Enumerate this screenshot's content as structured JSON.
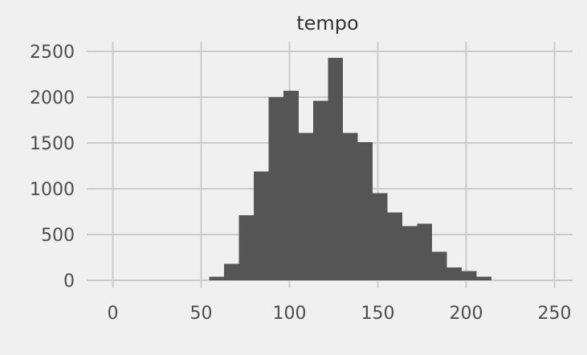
{
  "chart_data": {
    "type": "bar",
    "title": "tempo",
    "xlabel": "",
    "ylabel": "",
    "xlim": [
      -10,
      255
    ],
    "ylim": [
      0,
      2560
    ],
    "x_ticks": [
      0,
      50,
      100,
      150,
      200,
      250
    ],
    "y_ticks": [
      0,
      500,
      1000,
      1500,
      2000,
      2500
    ],
    "grid": true,
    "bin_width": 8.4,
    "bins": [
      {
        "x0": 54.6,
        "count": 40
      },
      {
        "x0": 63.0,
        "count": 180
      },
      {
        "x0": 71.4,
        "count": 710
      },
      {
        "x0": 79.8,
        "count": 1190
      },
      {
        "x0": 88.2,
        "count": 2000
      },
      {
        "x0": 96.6,
        "count": 2070
      },
      {
        "x0": 105.0,
        "count": 1610
      },
      {
        "x0": 113.4,
        "count": 1960
      },
      {
        "x0": 121.8,
        "count": 2430
      },
      {
        "x0": 130.2,
        "count": 1610
      },
      {
        "x0": 138.6,
        "count": 1510
      },
      {
        "x0": 147.0,
        "count": 950
      },
      {
        "x0": 155.4,
        "count": 740
      },
      {
        "x0": 163.8,
        "count": 590
      },
      {
        "x0": 172.2,
        "count": 620
      },
      {
        "x0": 180.6,
        "count": 310
      },
      {
        "x0": 189.0,
        "count": 140
      },
      {
        "x0": 197.4,
        "count": 100
      },
      {
        "x0": 205.8,
        "count": 40
      }
    ],
    "colors": {
      "background": "#f0f0f0",
      "grid": "#cbcbcb",
      "bar": "#555555",
      "tick_text": "#4d4d4d",
      "title_text": "#333333"
    }
  }
}
